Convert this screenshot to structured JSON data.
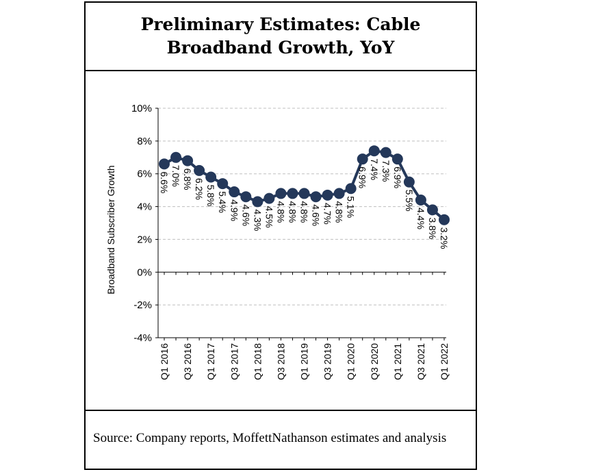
{
  "title": "Preliminary Estimates: Cable Broadband Growth, YoY",
  "source": "Source: Company reports, MoffettNathanson estimates and analysis",
  "colors": {
    "series": "#24385a",
    "grid": "#bfbfbf",
    "axis": "#000000"
  },
  "chart_data": {
    "type": "line",
    "title": "Preliminary Estimates: Cable Broadband Growth, YoY",
    "ylabel": "Broadband Subscriber Growth",
    "xlabel": "",
    "ylim": [
      -4,
      10
    ],
    "ytick_values": [
      -4,
      -2,
      0,
      2,
      4,
      6,
      8,
      10
    ],
    "ytick_labels": [
      "-4%",
      "-2%",
      "0%",
      "2%",
      "4%",
      "6%",
      "8%",
      "10%"
    ],
    "grid": true,
    "categories": [
      "Q1 2016",
      "Q2 2016",
      "Q3 2016",
      "Q4 2016",
      "Q1 2017",
      "Q2 2017",
      "Q3 2017",
      "Q4 2017",
      "Q1 2018",
      "Q2 2018",
      "Q3 2018",
      "Q4 2018",
      "Q1 2019",
      "Q2 2019",
      "Q3 2019",
      "Q4 2019",
      "Q1 2020",
      "Q2 2020",
      "Q3 2020",
      "Q4 2020",
      "Q1 2021",
      "Q2 2021",
      "Q3 2021",
      "Q4 2021",
      "Q1 2022"
    ],
    "xtick_labels": [
      "Q1 2016",
      "Q3 2016",
      "Q1 2017",
      "Q3 2017",
      "Q1 2018",
      "Q3 2018",
      "Q1 2019",
      "Q3 2019",
      "Q1 2020",
      "Q3 2020",
      "Q1 2021",
      "Q3 2021",
      "Q1 2022"
    ],
    "series": [
      {
        "name": "Broadband Subscriber Growth",
        "values": [
          6.6,
          7.0,
          6.8,
          6.2,
          5.8,
          5.4,
          4.9,
          4.6,
          4.3,
          4.5,
          4.8,
          4.8,
          4.8,
          4.6,
          4.7,
          4.8,
          5.1,
          6.9,
          7.4,
          7.3,
          6.9,
          5.5,
          4.4,
          3.8,
          3.2
        ],
        "data_labels": [
          "6.6%",
          "7.0%",
          "6.8%",
          "6.2%",
          "5.8%",
          "5.4%",
          "4.9%",
          "4.6%",
          "4.3%",
          "4.5%",
          "4.8%",
          "4.8%",
          "4.8%",
          "4.6%",
          "4.7%",
          "4.8%",
          "5.1%",
          "6.9%",
          "7.4%",
          "7.3%",
          "6.9%",
          "5.5%",
          "4.4%",
          "3.8%",
          "3.2%"
        ]
      }
    ]
  }
}
